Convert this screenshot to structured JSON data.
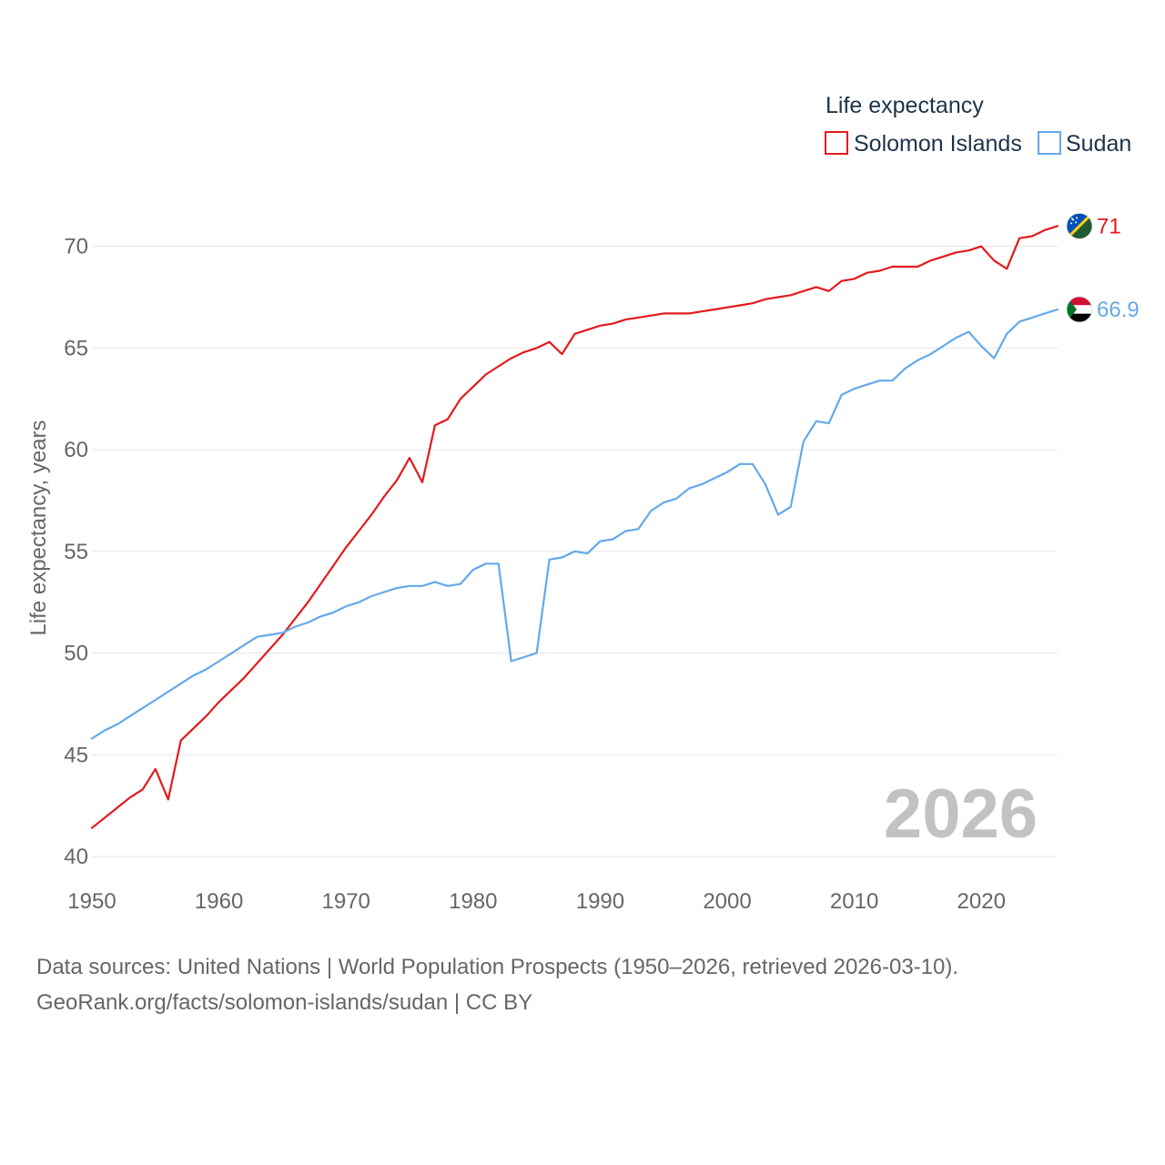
{
  "chart_data": {
    "type": "line",
    "title": "Life expectancy",
    "ylabel": "Life expectancy, years",
    "xlabel": "",
    "xlim": [
      1950,
      2026
    ],
    "ylim": [
      40,
      72
    ],
    "x_ticks": [
      1950,
      1960,
      1970,
      1980,
      1990,
      2000,
      2010,
      2020
    ],
    "y_ticks": [
      40,
      45,
      50,
      55,
      60,
      65,
      70
    ],
    "grid": true,
    "legend_position": "top-right",
    "year_label": "2026",
    "series": [
      {
        "name": "Solomon Islands",
        "color": "#e31a1c",
        "end_label": "71",
        "flag": "solomon-islands-flag",
        "points": [
          [
            1950,
            41.4
          ],
          [
            1951,
            41.9
          ],
          [
            1952,
            42.4
          ],
          [
            1953,
            42.9
          ],
          [
            1954,
            43.3
          ],
          [
            1955,
            44.3
          ],
          [
            1956,
            42.8
          ],
          [
            1957,
            45.7
          ],
          [
            1958,
            46.3
          ],
          [
            1959,
            46.9
          ],
          [
            1960,
            47.6
          ],
          [
            1961,
            48.2
          ],
          [
            1962,
            48.8
          ],
          [
            1963,
            49.5
          ],
          [
            1964,
            50.2
          ],
          [
            1965,
            50.9
          ],
          [
            1966,
            51.7
          ],
          [
            1967,
            52.5
          ],
          [
            1968,
            53.4
          ],
          [
            1969,
            54.3
          ],
          [
            1970,
            55.2
          ],
          [
            1971,
            56.0
          ],
          [
            1972,
            56.8
          ],
          [
            1973,
            57.7
          ],
          [
            1974,
            58.5
          ],
          [
            1975,
            59.6
          ],
          [
            1976,
            58.4
          ],
          [
            1977,
            61.2
          ],
          [
            1978,
            61.5
          ],
          [
            1979,
            62.5
          ],
          [
            1980,
            63.1
          ],
          [
            1981,
            63.7
          ],
          [
            1982,
            64.1
          ],
          [
            1983,
            64.5
          ],
          [
            1984,
            64.8
          ],
          [
            1985,
            65.0
          ],
          [
            1986,
            65.3
          ],
          [
            1987,
            64.7
          ],
          [
            1988,
            65.7
          ],
          [
            1989,
            65.9
          ],
          [
            1990,
            66.1
          ],
          [
            1991,
            66.2
          ],
          [
            1992,
            66.4
          ],
          [
            1993,
            66.5
          ],
          [
            1994,
            66.6
          ],
          [
            1995,
            66.7
          ],
          [
            1996,
            66.7
          ],
          [
            1997,
            66.7
          ],
          [
            1998,
            66.8
          ],
          [
            1999,
            66.9
          ],
          [
            2000,
            67.0
          ],
          [
            2001,
            67.1
          ],
          [
            2002,
            67.2
          ],
          [
            2003,
            67.4
          ],
          [
            2004,
            67.5
          ],
          [
            2005,
            67.6
          ],
          [
            2006,
            67.8
          ],
          [
            2007,
            68.0
          ],
          [
            2008,
            67.8
          ],
          [
            2009,
            68.3
          ],
          [
            2010,
            68.4
          ],
          [
            2011,
            68.7
          ],
          [
            2012,
            68.8
          ],
          [
            2013,
            69.0
          ],
          [
            2014,
            69.0
          ],
          [
            2015,
            69.0
          ],
          [
            2016,
            69.3
          ],
          [
            2017,
            69.5
          ],
          [
            2018,
            69.7
          ],
          [
            2019,
            69.8
          ],
          [
            2020,
            70.0
          ],
          [
            2021,
            69.3
          ],
          [
            2022,
            68.9
          ],
          [
            2023,
            70.4
          ],
          [
            2024,
            70.5
          ],
          [
            2025,
            70.8
          ],
          [
            2026,
            71.0
          ]
        ]
      },
      {
        "name": "Sudan",
        "color": "#64a9e8",
        "end_label": "66.9",
        "flag": "sudan-flag",
        "points": [
          [
            1950,
            45.8
          ],
          [
            1951,
            46.2
          ],
          [
            1952,
            46.5
          ],
          [
            1953,
            46.9
          ],
          [
            1954,
            47.3
          ],
          [
            1955,
            47.7
          ],
          [
            1956,
            48.1
          ],
          [
            1957,
            48.5
          ],
          [
            1958,
            48.9
          ],
          [
            1959,
            49.2
          ],
          [
            1960,
            49.6
          ],
          [
            1961,
            50.0
          ],
          [
            1962,
            50.4
          ],
          [
            1963,
            50.8
          ],
          [
            1964,
            50.9
          ],
          [
            1965,
            51.0
          ],
          [
            1966,
            51.3
          ],
          [
            1967,
            51.5
          ],
          [
            1968,
            51.8
          ],
          [
            1969,
            52.0
          ],
          [
            1970,
            52.3
          ],
          [
            1971,
            52.5
          ],
          [
            1972,
            52.8
          ],
          [
            1973,
            53.0
          ],
          [
            1974,
            53.2
          ],
          [
            1975,
            53.3
          ],
          [
            1976,
            53.3
          ],
          [
            1977,
            53.5
          ],
          [
            1978,
            53.3
          ],
          [
            1979,
            53.4
          ],
          [
            1980,
            54.1
          ],
          [
            1981,
            54.4
          ],
          [
            1982,
            54.4
          ],
          [
            1983,
            49.6
          ],
          [
            1984,
            49.8
          ],
          [
            1985,
            50.0
          ],
          [
            1986,
            54.6
          ],
          [
            1987,
            54.7
          ],
          [
            1988,
            55.0
          ],
          [
            1989,
            54.9
          ],
          [
            1990,
            55.5
          ],
          [
            1991,
            55.6
          ],
          [
            1992,
            56.0
          ],
          [
            1993,
            56.1
          ],
          [
            1994,
            57.0
          ],
          [
            1995,
            57.4
          ],
          [
            1996,
            57.6
          ],
          [
            1997,
            58.1
          ],
          [
            1998,
            58.3
          ],
          [
            1999,
            58.6
          ],
          [
            2000,
            58.9
          ],
          [
            2001,
            59.3
          ],
          [
            2002,
            59.3
          ],
          [
            2003,
            58.3
          ],
          [
            2004,
            56.8
          ],
          [
            2005,
            57.2
          ],
          [
            2006,
            60.4
          ],
          [
            2007,
            61.4
          ],
          [
            2008,
            61.3
          ],
          [
            2009,
            62.7
          ],
          [
            2010,
            63.0
          ],
          [
            2011,
            63.2
          ],
          [
            2012,
            63.4
          ],
          [
            2013,
            63.4
          ],
          [
            2014,
            64.0
          ],
          [
            2015,
            64.4
          ],
          [
            2016,
            64.7
          ],
          [
            2017,
            65.1
          ],
          [
            2018,
            65.5
          ],
          [
            2019,
            65.8
          ],
          [
            2020,
            65.1
          ],
          [
            2021,
            64.5
          ],
          [
            2022,
            65.7
          ],
          [
            2023,
            66.3
          ],
          [
            2024,
            66.5
          ],
          [
            2025,
            66.7
          ],
          [
            2026,
            66.9
          ]
        ]
      }
    ]
  },
  "source": {
    "line1": "Data sources: United Nations | World Population Prospects (1950–2026, retrieved 2026-03-10).",
    "line2": "GeoRank.org/facts/solomon-islands/sudan | CC BY"
  }
}
